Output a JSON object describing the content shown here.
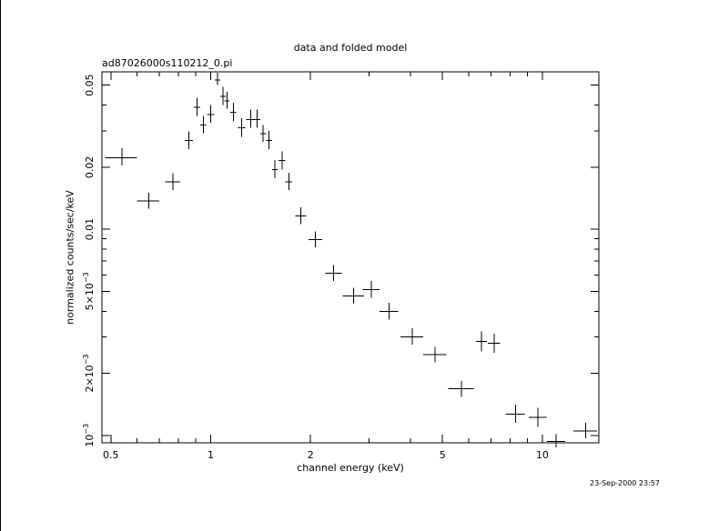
{
  "chart_data": {
    "type": "scatter",
    "title": "data and folded model",
    "subtitle": "ad87026000s110212_0.pi",
    "xlabel": "channel energy (keV)",
    "ylabel": "normalized counts/sec/keV",
    "x_scale": "log",
    "y_scale": "log",
    "xlim": [
      0.47,
      14.8
    ],
    "ylim": [
      0.00092,
      0.058
    ],
    "x_ticks": [
      {
        "value": 0.5,
        "label": "0.5"
      },
      {
        "value": 1,
        "label": "1"
      },
      {
        "value": 2,
        "label": "2"
      },
      {
        "value": 5,
        "label": "5"
      },
      {
        "value": 10,
        "label": "10"
      }
    ],
    "y_ticks": [
      {
        "value": 0.001,
        "mantissa": "10",
        "exp": "−3"
      },
      {
        "value": 0.002,
        "mantissa": "2×10",
        "exp": "−3"
      },
      {
        "value": 0.005,
        "mantissa": "5×10",
        "exp": "−3"
      },
      {
        "value": 0.01,
        "mantissa": "0.01"
      },
      {
        "value": 0.02,
        "mantissa": "0.02"
      },
      {
        "value": 0.05,
        "mantissa": "0.05"
      }
    ],
    "grid": false,
    "color": "#000000",
    "points": [
      {
        "x": 0.54,
        "xerr": [
          0.06,
          0.06
        ],
        "y": 0.0222,
        "yerr": [
          0.0018,
          0.0025
        ]
      },
      {
        "x": 0.65,
        "xerr": [
          0.05,
          0.05
        ],
        "y": 0.0137,
        "yerr": [
          0.0011,
          0.0013
        ]
      },
      {
        "x": 0.77,
        "xerr": [
          0.04,
          0.04
        ],
        "y": 0.017,
        "yerr": [
          0.0015,
          0.0017
        ]
      },
      {
        "x": 0.86,
        "xerr": [
          0.025,
          0.025
        ],
        "y": 0.027,
        "yerr": [
          0.0025,
          0.0028
        ]
      },
      {
        "x": 0.91,
        "xerr": [
          0.02,
          0.02
        ],
        "y": 0.039,
        "yerr": [
          0.0035,
          0.0045
        ]
      },
      {
        "x": 0.95,
        "xerr": [
          0.02,
          0.02
        ],
        "y": 0.032,
        "yerr": [
          0.0028,
          0.0035
        ]
      },
      {
        "x": 1.0,
        "xerr": [
          0.025,
          0.025
        ],
        "y": 0.036,
        "yerr": [
          0.0032,
          0.004
        ]
      },
      {
        "x": 1.05,
        "xerr": [
          0.02,
          0.02
        ],
        "y": 0.053,
        "yerr": [
          0.003,
          0.0045
        ]
      },
      {
        "x": 1.09,
        "xerr": [
          0.02,
          0.02
        ],
        "y": 0.044,
        "yerr": [
          0.004,
          0.005
        ]
      },
      {
        "x": 1.12,
        "xerr": [
          0.02,
          0.02
        ],
        "y": 0.042,
        "yerr": [
          0.0035,
          0.0045
        ]
      },
      {
        "x": 1.17,
        "xerr": [
          0.025,
          0.025
        ],
        "y": 0.037,
        "yerr": [
          0.0035,
          0.004
        ]
      },
      {
        "x": 1.24,
        "xerr": [
          0.03,
          0.03
        ],
        "y": 0.031,
        "yerr": [
          0.003,
          0.0035
        ]
      },
      {
        "x": 1.32,
        "xerr": [
          0.04,
          0.04
        ],
        "y": 0.034,
        "yerr": [
          0.003,
          0.004
        ]
      },
      {
        "x": 1.38,
        "xerr": [
          0.03,
          0.03
        ],
        "y": 0.034,
        "yerr": [
          0.003,
          0.004
        ]
      },
      {
        "x": 1.44,
        "xerr": [
          0.03,
          0.03
        ],
        "y": 0.029,
        "yerr": [
          0.0025,
          0.003
        ]
      },
      {
        "x": 1.5,
        "xerr": [
          0.03,
          0.03
        ],
        "y": 0.027,
        "yerr": [
          0.0025,
          0.003
        ]
      },
      {
        "x": 1.56,
        "xerr": [
          0.03,
          0.03
        ],
        "y": 0.0195,
        "yerr": [
          0.0018,
          0.0022
        ]
      },
      {
        "x": 1.64,
        "xerr": [
          0.04,
          0.04
        ],
        "y": 0.0215,
        "yerr": [
          0.002,
          0.0024
        ]
      },
      {
        "x": 1.72,
        "xerr": [
          0.04,
          0.04
        ],
        "y": 0.017,
        "yerr": [
          0.0015,
          0.0018
        ]
      },
      {
        "x": 1.87,
        "xerr": [
          0.07,
          0.07
        ],
        "y": 0.0116,
        "yerr": [
          0.001,
          0.0012
        ]
      },
      {
        "x": 2.07,
        "xerr": [
          0.1,
          0.1
        ],
        "y": 0.0089,
        "yerr": [
          0.00075,
          0.00085
        ]
      },
      {
        "x": 2.35,
        "xerr": [
          0.13,
          0.13
        ],
        "y": 0.0061,
        "yerr": [
          0.0005,
          0.0006
        ]
      },
      {
        "x": 2.7,
        "xerr": [
          0.2,
          0.2
        ],
        "y": 0.00475,
        "yerr": [
          0.0004,
          0.00045
        ]
      },
      {
        "x": 3.05,
        "xerr": [
          0.18,
          0.18
        ],
        "y": 0.0051,
        "yerr": [
          0.00045,
          0.0005
        ]
      },
      {
        "x": 3.45,
        "xerr": [
          0.22,
          0.22
        ],
        "y": 0.004,
        "yerr": [
          0.00035,
          0.0004
        ]
      },
      {
        "x": 4.05,
        "xerr": [
          0.32,
          0.32
        ],
        "y": 0.003,
        "yerr": [
          0.00025,
          0.0003
        ]
      },
      {
        "x": 4.75,
        "xerr": [
          0.38,
          0.38
        ],
        "y": 0.00246,
        "yerr": [
          0.0002,
          0.00023
        ]
      },
      {
        "x": 5.7,
        "xerr": [
          0.5,
          0.5
        ],
        "y": 0.00168,
        "yerr": [
          0.00014,
          0.00016
        ]
      },
      {
        "x": 6.55,
        "xerr": [
          0.25,
          0.25
        ],
        "y": 0.00285,
        "yerr": [
          0.0003,
          0.00035
        ]
      },
      {
        "x": 7.15,
        "xerr": [
          0.3,
          0.3
        ],
        "y": 0.0028,
        "yerr": [
          0.00028,
          0.00032
        ]
      },
      {
        "x": 8.3,
        "xerr": [
          0.55,
          0.55
        ],
        "y": 0.00127,
        "yerr": [
          0.00012,
          0.00014
        ]
      },
      {
        "x": 9.7,
        "xerr": [
          0.6,
          0.6
        ],
        "y": 0.00122,
        "yerr": [
          0.00012,
          0.00014
        ]
      },
      {
        "x": 11.0,
        "xerr": [
          0.7,
          0.7
        ],
        "y": 0.000935,
        "yerr": [
          6e-05,
          8e-05
        ]
      },
      {
        "x": 13.5,
        "xerr": [
          1.1,
          1.1
        ],
        "y": 0.00105,
        "yerr": [
          8e-05,
          0.0001
        ]
      }
    ]
  },
  "footer": {
    "timestamp": "23-Sep-2000 23:57"
  }
}
